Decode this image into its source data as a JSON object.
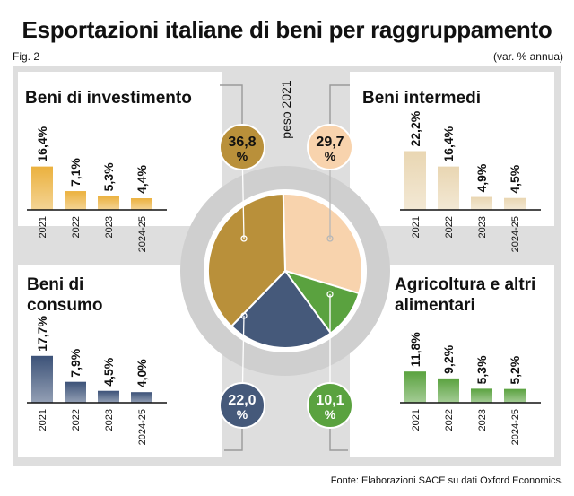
{
  "header": {
    "title": "Esportazioni italiane di beni per raggruppamento",
    "fig": "Fig. 2",
    "unit": "(var. % annua)"
  },
  "center": {
    "label": "peso 2021"
  },
  "source": "Fonte: Elaborazioni SACE su dati Oxford Economics.",
  "chart_data": [
    {
      "type": "pie",
      "title": "",
      "slices": [
        {
          "label": "Beni intermedi",
          "value": 29.7,
          "display": "29,7 %",
          "color": "#f8d3ad"
        },
        {
          "label": "Agricoltura e altri alimentari",
          "value": 10.1,
          "display": "10,1 %",
          "color": "#5aa23f"
        },
        {
          "label": "Beni di consumo",
          "value": 22.0,
          "display": "22,0 %",
          "color": "#45597a"
        },
        {
          "label": "Beni di investimento",
          "value": 36.8,
          "display": "36,8 %",
          "color": "#b9903a"
        }
      ]
    },
    {
      "type": "bar",
      "title": "Beni di investimento",
      "categories": [
        "2021",
        "2022",
        "2023",
        "2024-25"
      ],
      "values": [
        16.4,
        7.1,
        5.3,
        4.4
      ],
      "labels": [
        "16,4%",
        "7,1%",
        "5,3%",
        "4,4%"
      ],
      "color": "#ebb13e"
    },
    {
      "type": "bar",
      "title": "Beni intermedi",
      "categories": [
        "2021",
        "2022",
        "2023",
        "2024-25"
      ],
      "values": [
        22.2,
        16.4,
        4.9,
        4.5
      ],
      "labels": [
        "22,2%",
        "16,4%",
        "4,9%",
        "4,5%"
      ],
      "color": "#e9d6b2"
    },
    {
      "type": "bar",
      "title": "Beni di consumo",
      "categories": [
        "2021",
        "2022",
        "2023",
        "2024-25"
      ],
      "values": [
        17.7,
        7.9,
        4.5,
        4.0
      ],
      "labels": [
        "17,7%",
        "7,9%",
        "4,5%",
        "4,0%"
      ],
      "color": "#3c5278"
    },
    {
      "type": "bar",
      "title": "Agricoltura e altri alimentari",
      "categories": [
        "2021",
        "2022",
        "2023",
        "2024-25"
      ],
      "values": [
        11.8,
        9.2,
        5.3,
        5.2
      ],
      "labels": [
        "11,8%",
        "9,2%",
        "5,3%",
        "5,2%"
      ],
      "color": "#5aa23f"
    }
  ]
}
